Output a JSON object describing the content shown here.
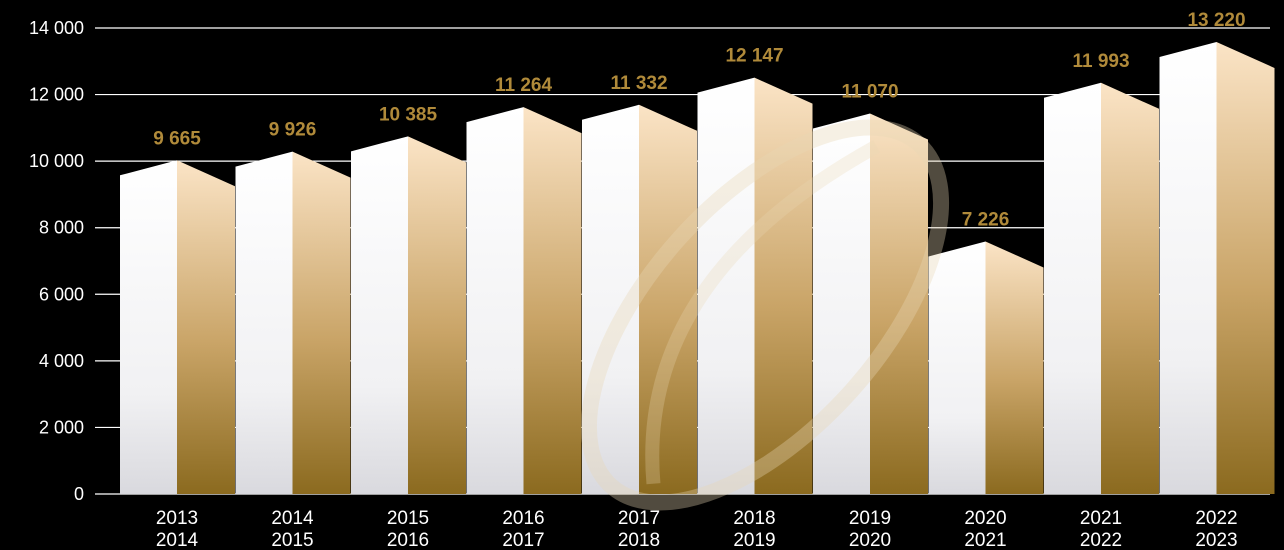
{
  "chart_data": {
    "type": "bar",
    "categories": [
      [
        "2013",
        "2014"
      ],
      [
        "2014",
        "2015"
      ],
      [
        "2015",
        "2016"
      ],
      [
        "2016",
        "2017"
      ],
      [
        "2017",
        "2018"
      ],
      [
        "2018",
        "2019"
      ],
      [
        "2019",
        "2020"
      ],
      [
        "2020",
        "2021"
      ],
      [
        "2021",
        "2022"
      ],
      [
        "2022",
        "2023"
      ]
    ],
    "values": [
      9665,
      9926,
      10385,
      11264,
      11332,
      12147,
      11070,
      7226,
      11993,
      13220
    ],
    "value_labels": [
      "9 665",
      "9 926",
      "10 385",
      "11 264",
      "11 332",
      "12 147",
      "11 070",
      "7 226",
      "11 993",
      "13 220"
    ],
    "yticks": [
      0,
      2000,
      4000,
      6000,
      8000,
      10000,
      12000,
      14000
    ],
    "ytick_labels": [
      "0",
      "2 000",
      "4 000",
      "6 000",
      "8 000",
      "10 000",
      "12 000",
      "14 000"
    ],
    "ylim": [
      0,
      14000
    ],
    "title": "",
    "xlabel": "",
    "ylabel": "",
    "grid": true,
    "legend": "none",
    "colors": {
      "background": "#000000",
      "bar_front_light": "#ffffff",
      "bar_gold_top": "#fbe4c6",
      "bar_gold_bottom": "#8b6a1f",
      "data_label": "#b08a3a",
      "axis_text": "#ffffff",
      "gridline": "#ffffff"
    }
  },
  "watermark": {
    "icon": "rugby-ball-watermark-icon"
  }
}
